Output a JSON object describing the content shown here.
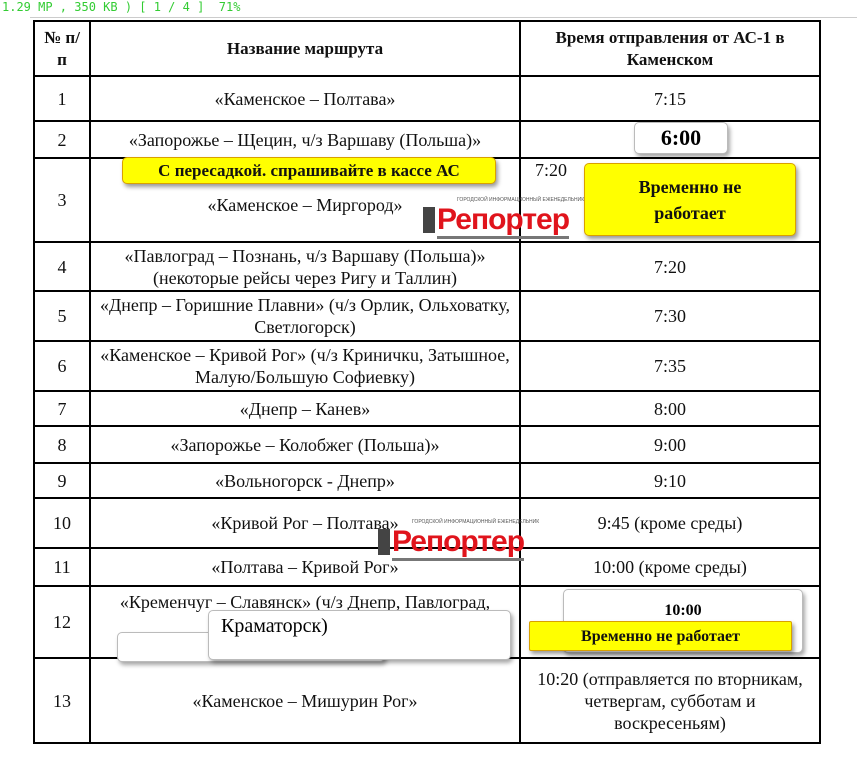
{
  "viewer": {
    "status": "1.29 MP , 350 KB ) [ 1 / 4 ]  71%"
  },
  "table": {
    "headers": [
      "№ п/п",
      "Название маршрута",
      "Время отправления от   АС-1 в Каменском"
    ],
    "rows": [
      {
        "n": "1",
        "route": "«Каменское – Полтава»",
        "time": "7:15"
      },
      {
        "n": "2",
        "route": "«Запорожье – Щецин, ч/з Варшаву (Польша)»",
        "time": ""
      },
      {
        "n": "3",
        "route": "«Каменское – Миргород»",
        "time": "7:20"
      },
      {
        "n": "4",
        "route": "«Павлоград – Познань, ч/з Варшаву (Польша)» (некоторые рейсы через Ригу и Таллин)",
        "time": "7:20"
      },
      {
        "n": "5",
        "route": "«Днепр – Горишние Плавни» (ч/з Орлик, Ольховатку, Светлогорск)",
        "time": "7:30"
      },
      {
        "n": "6",
        "route": "«Каменское – Кривой Рог» (ч/з Криничкu, Затышное, Малую/Большую Софиевку)",
        "time": "7:35"
      },
      {
        "n": "7",
        "route": "«Днепр – Канев»",
        "time": "8:00"
      },
      {
        "n": "8",
        "route": "«Запорожье – Колобжег (Польша)»",
        "time": "9:00"
      },
      {
        "n": "9",
        "route": "«Вольногорск - Днепр»",
        "time": "9:10"
      },
      {
        "n": "10",
        "route": "«Кривой Рог – Полтава»",
        "time": "9:45 (кроме среды)"
      },
      {
        "n": "11",
        "route": "«Полтава – Кривой Рог»",
        "time": "10:00 (кроме среды)"
      },
      {
        "n": "12",
        "route": "«Кременчуг – Славянск» (ч/з Днепр, Павлоград,",
        "time": ""
      },
      {
        "n": "13",
        "route": "«Каменское – Мишурин Рог»",
        "time": "10:20 (отправляется по вторникам, четвергам, субботам и воскресеньям)"
      }
    ]
  },
  "overlays": {
    "row2_time": "6:00",
    "row3_note": "С пересадкой. спрашивайте в кассе АС",
    "row3_status": "Временно не работает",
    "row12_route_end": "Краматорск)",
    "row12_time": "10:00",
    "row12_status": "Временно не работает"
  },
  "watermark": {
    "text": "Репортер",
    "tagline": "ГОРОДСКОЙ ИНФОРМАЦИОННЫЙ ЕЖЕНЕДЕЛЬНИК",
    "prefix": "НАШ",
    "color": "#e0141c"
  }
}
